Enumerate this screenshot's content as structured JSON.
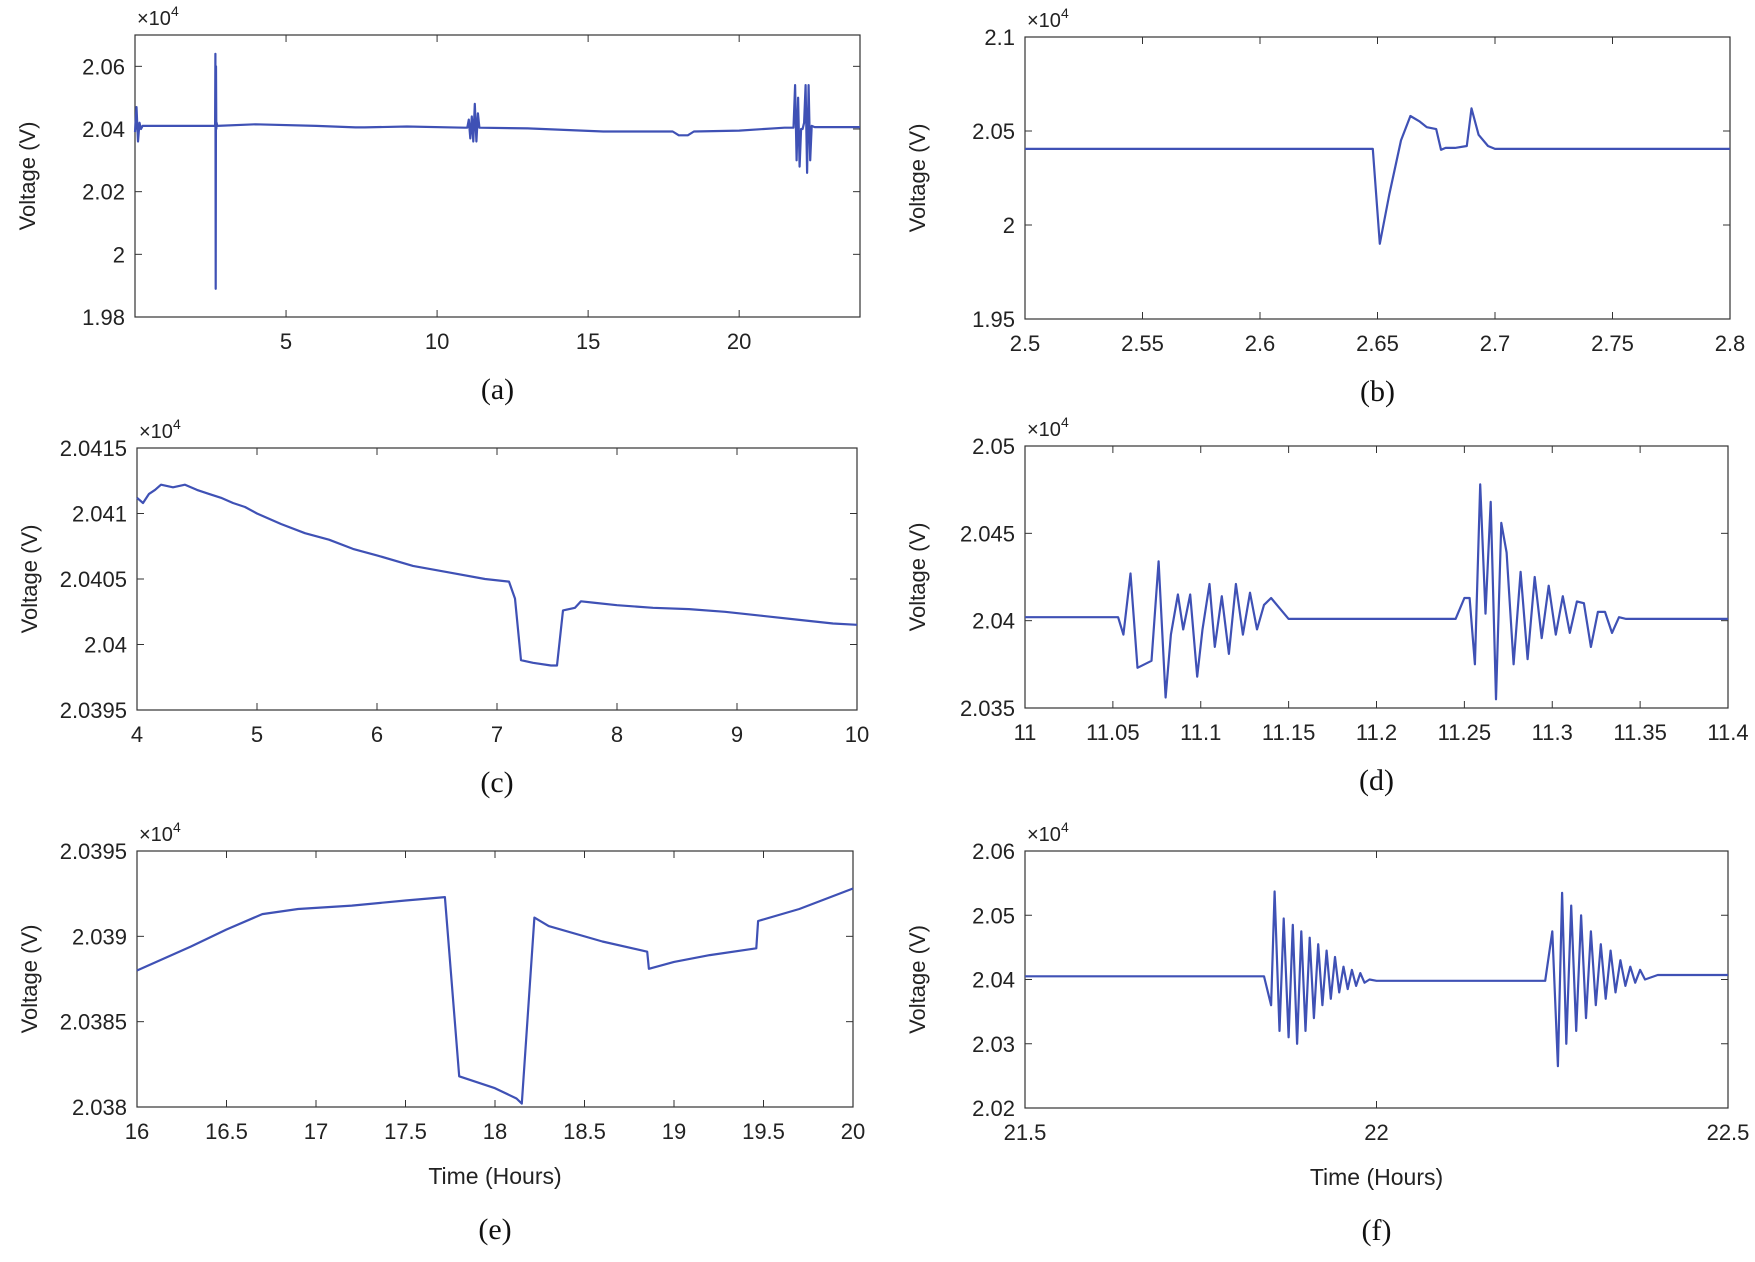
{
  "figure": {
    "series_color": "#3f51b5"
  },
  "chart_data": [
    {
      "id": "a",
      "type": "line",
      "caption": "(a)",
      "ylabel": "Voltage (V)",
      "xlabel": "",
      "y_multiplier": "×10",
      "y_exponent": "4",
      "xlim": [
        0,
        24
      ],
      "ylim": [
        1.98,
        2.07
      ],
      "xticks": [
        5,
        10,
        15,
        20
      ],
      "xtick_labels": [
        "5",
        "10",
        "15",
        "20"
      ],
      "yticks": [
        1.98,
        2.0,
        2.02,
        2.04,
        2.06
      ],
      "ytick_labels": [
        "1.98",
        "2",
        "2.02",
        "2.04",
        "2.06"
      ],
      "x": [
        0,
        0.05,
        0.1,
        0.15,
        0.2,
        0.25,
        1,
        2,
        2.6,
        2.65,
        2.66,
        2.67,
        2.68,
        2.69,
        2.7,
        2.72,
        4,
        6,
        7.3,
        7.6,
        9,
        10.9,
        11.0,
        11.05,
        11.1,
        11.15,
        11.2,
        11.25,
        11.3,
        11.35,
        11.4,
        13,
        15.5,
        17.8,
        18.0,
        18.3,
        18.5,
        20,
        21.5,
        21.8,
        21.85,
        21.9,
        21.95,
        22.0,
        22.05,
        22.1,
        22.15,
        22.2,
        22.25,
        22.3,
        22.35,
        22.4,
        22.5,
        24
      ],
      "y": [
        2.039,
        2.047,
        2.036,
        2.042,
        2.04,
        2.041,
        2.041,
        2.041,
        2.041,
        2.041,
        2.064,
        1.989,
        2.06,
        2.04,
        2.042,
        2.041,
        2.0415,
        2.041,
        2.0405,
        2.0405,
        2.0408,
        2.0404,
        2.0404,
        2.043,
        2.037,
        2.044,
        2.036,
        2.048,
        2.036,
        2.045,
        2.0404,
        2.0402,
        2.0392,
        2.0392,
        2.038,
        2.038,
        2.0392,
        2.0395,
        2.0404,
        2.0404,
        2.054,
        2.03,
        2.05,
        2.028,
        2.04,
        2.04,
        2.042,
        2.054,
        2.026,
        2.054,
        2.03,
        2.041,
        2.0406,
        2.0406
      ]
    },
    {
      "id": "b",
      "type": "line",
      "caption": "(b)",
      "ylabel": "Voltage (V)",
      "xlabel": "",
      "y_multiplier": "×10",
      "y_exponent": "4",
      "xlim": [
        2.5,
        2.8
      ],
      "ylim": [
        1.95,
        2.1
      ],
      "xticks": [
        2.5,
        2.55,
        2.6,
        2.65,
        2.7,
        2.75,
        2.8
      ],
      "xtick_labels": [
        "2.5",
        "2.55",
        "2.6",
        "2.65",
        "2.7",
        "2.75",
        "2.8"
      ],
      "yticks": [
        1.95,
        2.0,
        2.05,
        2.1
      ],
      "ytick_labels": [
        "1.95",
        "2",
        "2.05",
        "2.1"
      ],
      "x": [
        2.5,
        2.648,
        2.651,
        2.655,
        2.66,
        2.664,
        2.668,
        2.671,
        2.675,
        2.677,
        2.679,
        2.683,
        2.688,
        2.69,
        2.693,
        2.697,
        2.7,
        2.8
      ],
      "y": [
        2.0405,
        2.0405,
        1.99,
        2.016,
        2.045,
        2.058,
        2.055,
        2.052,
        2.051,
        2.04,
        2.041,
        2.041,
        2.042,
        2.062,
        2.048,
        2.042,
        2.0405,
        2.0405
      ]
    },
    {
      "id": "c",
      "type": "line",
      "caption": "(c)",
      "ylabel": "Voltage (V)",
      "xlabel": "",
      "y_multiplier": "×10",
      "y_exponent": "4",
      "xlim": [
        4,
        10
      ],
      "ylim": [
        2.0395,
        2.0415
      ],
      "xticks": [
        4,
        5,
        6,
        7,
        8,
        9,
        10
      ],
      "xtick_labels": [
        "4",
        "5",
        "6",
        "7",
        "8",
        "9",
        "10"
      ],
      "yticks": [
        2.0395,
        2.04,
        2.0405,
        2.041,
        2.0415
      ],
      "ytick_labels": [
        "2.0395",
        "2.04",
        "2.0405",
        "2.041",
        "2.0415"
      ],
      "x": [
        4.0,
        4.05,
        4.1,
        4.15,
        4.2,
        4.3,
        4.4,
        4.5,
        4.6,
        4.7,
        4.8,
        4.9,
        5.0,
        5.2,
        5.4,
        5.6,
        5.8,
        6.0,
        6.3,
        6.6,
        6.9,
        7.1,
        7.15,
        7.2,
        7.3,
        7.45,
        7.5,
        7.55,
        7.65,
        7.7,
        7.8,
        8.0,
        8.3,
        8.6,
        8.9,
        9.2,
        9.5,
        9.8,
        10.0
      ],
      "y": [
        2.04112,
        2.04108,
        2.04115,
        2.04118,
        2.04122,
        2.0412,
        2.04122,
        2.04118,
        2.04115,
        2.04112,
        2.04108,
        2.04105,
        2.041,
        2.04092,
        2.04085,
        2.0408,
        2.04073,
        2.04068,
        2.0406,
        2.04055,
        2.0405,
        2.04048,
        2.04035,
        2.03988,
        2.03986,
        2.03984,
        2.03984,
        2.04026,
        2.04028,
        2.04033,
        2.04032,
        2.0403,
        2.04028,
        2.04027,
        2.04025,
        2.04022,
        2.04019,
        2.04016,
        2.04015
      ]
    },
    {
      "id": "d",
      "type": "line",
      "caption": "(d)",
      "ylabel": "Voltage (V)",
      "xlabel": "",
      "y_multiplier": "×10",
      "y_exponent": "4",
      "xlim": [
        11,
        11.4
      ],
      "ylim": [
        2.035,
        2.05
      ],
      "xticks": [
        11,
        11.05,
        11.1,
        11.15,
        11.2,
        11.25,
        11.3,
        11.35,
        11.4
      ],
      "xtick_labels": [
        "11",
        "11.05",
        "11.1",
        "11.15",
        "11.2",
        "11.25",
        "11.3",
        "11.35",
        "11.4"
      ],
      "yticks": [
        2.035,
        2.04,
        2.045,
        2.05
      ],
      "ytick_labels": [
        "2.035",
        "2.04",
        "2.045",
        "2.05"
      ],
      "x": [
        11.0,
        11.053,
        11.056,
        11.06,
        11.064,
        11.068,
        11.072,
        11.076,
        11.08,
        11.083,
        11.087,
        11.09,
        11.094,
        11.098,
        11.101,
        11.105,
        11.108,
        11.112,
        11.116,
        11.12,
        11.124,
        11.128,
        11.132,
        11.136,
        11.14,
        11.145,
        11.15,
        11.245,
        11.25,
        11.253,
        11.256,
        11.259,
        11.262,
        11.265,
        11.268,
        11.271,
        11.274,
        11.278,
        11.282,
        11.286,
        11.29,
        11.294,
        11.298,
        11.302,
        11.306,
        11.31,
        11.314,
        11.318,
        11.322,
        11.326,
        11.33,
        11.334,
        11.338,
        11.342,
        11.4
      ],
      "y": [
        2.0402,
        2.0402,
        2.0392,
        2.0427,
        2.0373,
        2.0375,
        2.0377,
        2.0434,
        2.0356,
        2.0392,
        2.0415,
        2.0395,
        2.0415,
        2.0368,
        2.0395,
        2.0421,
        2.0385,
        2.0414,
        2.0381,
        2.0421,
        2.0392,
        2.0416,
        2.0395,
        2.0409,
        2.0413,
        2.0407,
        2.0401,
        2.0401,
        2.0413,
        2.0413,
        2.0375,
        2.0478,
        2.0404,
        2.0468,
        2.0355,
        2.0456,
        2.0439,
        2.0375,
        2.0428,
        2.0378,
        2.0425,
        2.039,
        2.042,
        2.0392,
        2.0414,
        2.0393,
        2.0411,
        2.041,
        2.0385,
        2.0405,
        2.0405,
        2.0393,
        2.0402,
        2.0401,
        2.0401
      ]
    },
    {
      "id": "e",
      "type": "line",
      "caption": "(e)",
      "ylabel": "Voltage (V)",
      "xlabel": "Time (Hours)",
      "y_multiplier": "×10",
      "y_exponent": "4",
      "xlim": [
        16,
        20
      ],
      "ylim": [
        2.038,
        2.0395
      ],
      "xticks": [
        16,
        16.5,
        17,
        17.5,
        18,
        18.5,
        19,
        19.5,
        20
      ],
      "xtick_labels": [
        "16",
        "16.5",
        "17",
        "17.5",
        "18",
        "18.5",
        "19",
        "19.5",
        "20"
      ],
      "yticks": [
        2.038,
        2.0385,
        2.039,
        2.0395
      ],
      "ytick_labels": [
        "2.038",
        "2.0385",
        "2.039",
        "2.0395"
      ],
      "x": [
        16.0,
        16.3,
        16.5,
        16.7,
        16.9,
        17.2,
        17.5,
        17.72,
        17.8,
        18.0,
        18.12,
        18.15,
        18.22,
        18.3,
        18.6,
        18.85,
        18.86,
        19.0,
        19.2,
        19.46,
        19.47,
        19.7,
        20.0
      ],
      "y": [
        2.0388,
        2.03894,
        2.03904,
        2.03913,
        2.03916,
        2.03918,
        2.03921,
        2.03923,
        2.03818,
        2.03811,
        2.03805,
        2.03802,
        2.03911,
        2.03906,
        2.03897,
        2.03891,
        2.03881,
        2.03885,
        2.03889,
        2.03893,
        2.03909,
        2.03916,
        2.03928
      ]
    },
    {
      "id": "f",
      "type": "line",
      "caption": "(f)",
      "ylabel": "Voltage (V)",
      "xlabel": "Time (Hours)",
      "y_multiplier": "×10",
      "y_exponent": "4",
      "xlim": [
        21.5,
        22.5
      ],
      "ylim": [
        2.02,
        2.06
      ],
      "xticks": [
        21.5,
        22,
        22.5
      ],
      "xtick_labels": [
        "21.5",
        "22",
        "22.5"
      ],
      "yticks": [
        2.02,
        2.03,
        2.04,
        2.05,
        2.06
      ],
      "ytick_labels": [
        "2.02",
        "2.03",
        "2.04",
        "2.05",
        "2.06"
      ],
      "x": [
        21.5,
        21.84,
        21.85,
        21.855,
        21.862,
        21.868,
        21.875,
        21.881,
        21.887,
        21.893,
        21.899,
        21.905,
        21.911,
        21.917,
        21.923,
        21.929,
        21.935,
        21.941,
        21.947,
        21.953,
        21.959,
        21.965,
        21.971,
        21.977,
        21.983,
        21.99,
        22.0,
        22.24,
        22.25,
        22.258,
        22.264,
        22.27,
        22.277,
        22.284,
        22.291,
        22.298,
        22.305,
        22.312,
        22.319,
        22.326,
        22.333,
        22.34,
        22.347,
        22.354,
        22.361,
        22.368,
        22.375,
        22.382,
        22.4,
        22.5
      ],
      "y": [
        2.0405,
        2.0405,
        2.036,
        2.0537,
        2.032,
        2.0495,
        2.031,
        2.0485,
        2.03,
        2.0475,
        2.032,
        2.0465,
        2.034,
        2.0455,
        2.036,
        2.0445,
        2.037,
        2.0435,
        2.038,
        2.042,
        2.0385,
        2.0415,
        2.039,
        2.041,
        2.0395,
        2.04,
        2.0398,
        2.0398,
        2.0475,
        2.0265,
        2.0535,
        2.03,
        2.0515,
        2.032,
        2.05,
        2.034,
        2.0475,
        2.036,
        2.0455,
        2.037,
        2.0445,
        2.038,
        2.043,
        2.039,
        2.042,
        2.0395,
        2.0415,
        2.04,
        2.0407,
        2.0407
      ]
    }
  ]
}
